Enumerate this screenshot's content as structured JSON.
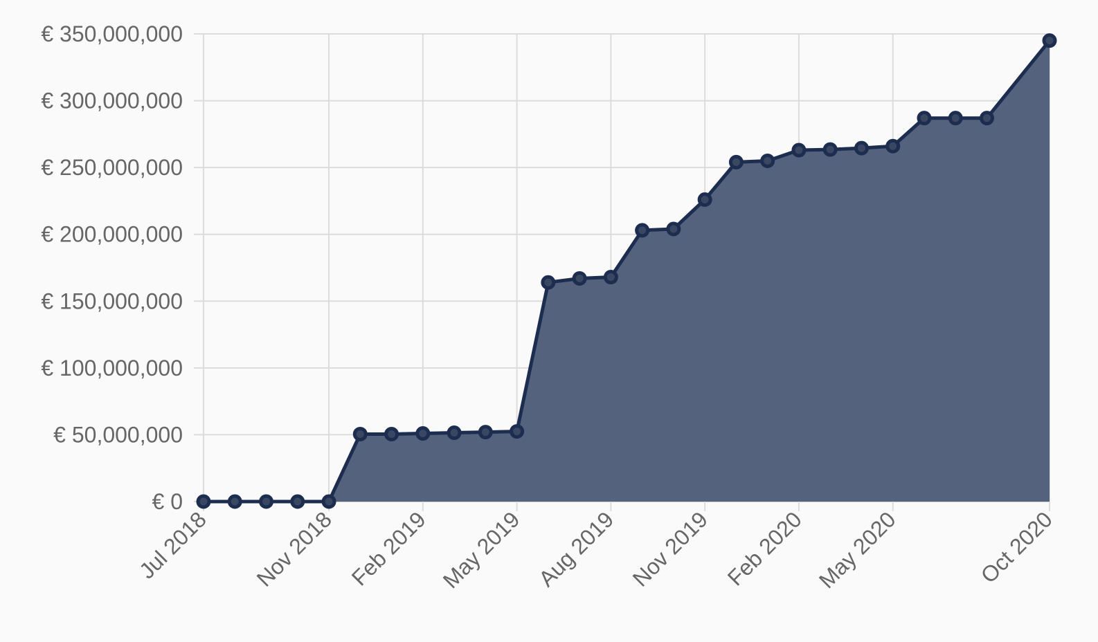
{
  "chart_data": {
    "type": "area",
    "title": "",
    "xlabel": "",
    "ylabel": "",
    "x": [
      "2018-07",
      "2018-08",
      "2018-09",
      "2018-10",
      "2018-11",
      "2018-12",
      "2019-01",
      "2019-02",
      "2019-03",
      "2019-04",
      "2019-05",
      "2019-06",
      "2019-07",
      "2019-08",
      "2019-09",
      "2019-10",
      "2019-11",
      "2019-12",
      "2020-01",
      "2020-02",
      "2020-03",
      "2020-04",
      "2020-05",
      "2020-06",
      "2020-07",
      "2020-08",
      "2020-09",
      "2020-10"
    ],
    "series": [
      {
        "values": [
          0,
          0,
          0,
          0,
          0,
          50500000,
          50500000,
          51000000,
          51500000,
          52000000,
          52500000,
          164000000,
          167000000,
          168000000,
          203000000,
          204000000,
          226000000,
          254000000,
          255000000,
          263000000,
          263500000,
          264500000,
          266000000,
          287000000,
          287000000,
          287000000,
          345000000
        ],
        "x": [
          "2018-07",
          "2018-08",
          "2018-09",
          "2018-10",
          "2018-11",
          "2018-12",
          "2019-01",
          "2019-02",
          "2019-03",
          "2019-04",
          "2019-05",
          "2019-06",
          "2019-07",
          "2019-08",
          "2019-09",
          "2019-10",
          "2019-11",
          "2019-12",
          "2020-01",
          "2020-02",
          "2020-03",
          "2020-04",
          "2020-05",
          "2020-06",
          "2020-07",
          "2020-08",
          "2020-10"
        ]
      }
    ],
    "ylim": [
      0,
      350000000
    ],
    "xlim": [
      "2018-07",
      "2020-10"
    ],
    "y_ticks": [
      0,
      50000000,
      100000000,
      150000000,
      200000000,
      250000000,
      300000000,
      350000000
    ],
    "y_tick_labels": [
      "€ 0",
      "€ 50,000,000",
      "€ 100,000,000",
      "€ 150,000,000",
      "€ 200,000,000",
      "€ 250,000,000",
      "€ 300,000,000",
      "€ 350,000,000"
    ],
    "x_ticks": [
      "2018-07",
      "2018-11",
      "2019-02",
      "2019-05",
      "2019-08",
      "2019-11",
      "2020-02",
      "2020-05",
      "2020-10"
    ],
    "x_tick_labels": [
      "Jul 2018",
      "Nov 2018",
      "Feb 2019",
      "May 2019",
      "Aug 2019",
      "Nov 2019",
      "Feb 2020",
      "May 2020",
      "Oct 2020"
    ],
    "grid": true,
    "colors": {
      "line": "#1d2d4f",
      "fill": "#54627d",
      "point_fill": "#3a4763"
    }
  }
}
